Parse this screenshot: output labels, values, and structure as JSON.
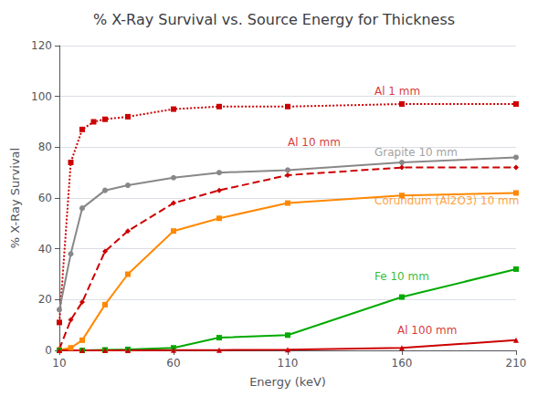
{
  "chart_data": {
    "type": "line",
    "title": "% X-Ray Survival vs. Source Energy for Thickness",
    "x_label": "Energy (keV)",
    "y_label": "% X-Ray Survival",
    "xlim": [
      10,
      210
    ],
    "ylim": [
      0,
      120
    ],
    "xticks": [
      10,
      60,
      110,
      160,
      210
    ],
    "yticks": [
      0,
      20,
      40,
      60,
      80,
      100,
      120
    ],
    "grid": true,
    "series": [
      {
        "name": "Al 1 mm",
        "color": "#cc0000",
        "line_style": "dotted",
        "marker": "square",
        "x": [
          10,
          15,
          20,
          25,
          30,
          40,
          60,
          80,
          110,
          160,
          210
        ],
        "values": [
          11,
          74,
          87,
          90,
          91,
          92,
          95,
          96,
          96,
          97,
          97
        ]
      },
      {
        "name": "Al 10 mm",
        "color": "#cc0000",
        "line_style": "dashed",
        "marker": "diamond",
        "x": [
          10,
          15,
          20,
          30,
          40,
          60,
          80,
          110,
          160,
          210
        ],
        "values": [
          0.5,
          12,
          19,
          39,
          47,
          58,
          63,
          69,
          72,
          72
        ]
      },
      {
        "name": "Grapite 10 mm",
        "color": "#888888",
        "line_style": "solid",
        "marker": "circle",
        "x": [
          10,
          15,
          20,
          30,
          40,
          60,
          80,
          110,
          160,
          210
        ],
        "values": [
          16,
          38,
          56,
          63,
          65,
          68,
          70,
          71,
          74,
          76
        ]
      },
      {
        "name": "Corundum (Al2O3) 10 mm",
        "color": "#ff8800",
        "line_style": "solid",
        "marker": "square",
        "x": [
          10,
          15,
          20,
          30,
          40,
          60,
          80,
          110,
          160,
          210
        ],
        "values": [
          0.2,
          1,
          4,
          18,
          30,
          47,
          52,
          58,
          61,
          62
        ]
      },
      {
        "name": "Fe 10 mm",
        "color": "#00aa00",
        "line_style": "solid",
        "marker": "square",
        "x": [
          10,
          20,
          30,
          40,
          60,
          80,
          110,
          160,
          210
        ],
        "values": [
          0.0,
          0.0,
          0.2,
          0.4,
          1,
          5,
          6,
          21,
          32
        ]
      },
      {
        "name": "Al 100 mm",
        "color": "#cc0000",
        "line_style": "solid",
        "marker": "triangle",
        "x": [
          10,
          20,
          30,
          40,
          60,
          80,
          110,
          160,
          210
        ],
        "values": [
          0.0,
          0.0,
          0.0,
          0.0,
          0.1,
          0.1,
          0.3,
          1,
          4
        ]
      }
    ],
    "annotations": [
      {
        "text": "Al 1 mm",
        "x": 148,
        "y": 102,
        "color": "#cc0000"
      },
      {
        "text": "Al 10 mm",
        "x": 110,
        "y": 82,
        "color": "#cc0000"
      },
      {
        "text": "Grapite 10 mm",
        "x": 148,
        "y": 78,
        "color": "#888888"
      },
      {
        "text": "Corundum (Al2O3) 10 mm",
        "x": 148,
        "y": 59,
        "color": "#ff8800"
      },
      {
        "text": "Fe 10 mm",
        "x": 148,
        "y": 29,
        "color": "#00aa00"
      },
      {
        "text": "Al 100 mm",
        "x": 158,
        "y": 8,
        "color": "#cc0000"
      }
    ]
  }
}
